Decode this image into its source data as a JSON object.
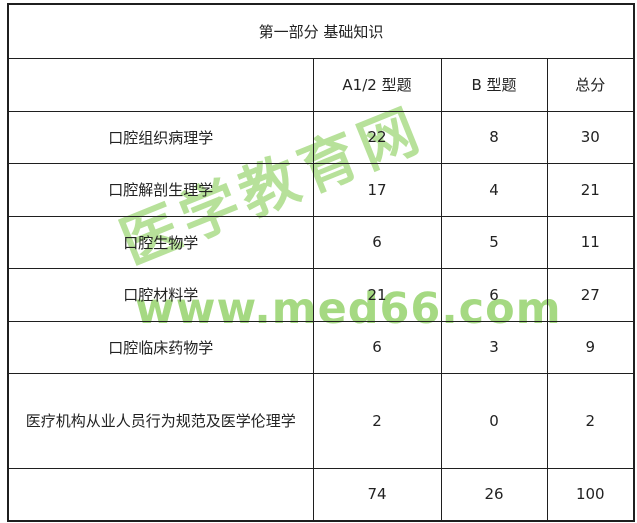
{
  "watermark": {
    "site_name": "医学教育网",
    "site_url": "www.med66.com",
    "diagonal_color": "#b7e19a",
    "url_color": "#a5d982"
  },
  "table": {
    "title": "第一部分 基础知识",
    "columns": [
      "",
      "A1/2 型题",
      "B 型题",
      "总分"
    ],
    "rows": [
      {
        "subject": "口腔组织病理学",
        "a12": "22",
        "b": "8",
        "total": "30"
      },
      {
        "subject": "口腔解剖生理学",
        "a12": "17",
        "b": "4",
        "total": "21"
      },
      {
        "subject": "口腔生物学",
        "a12": "6",
        "b": "5",
        "total": "11"
      },
      {
        "subject": "口腔材料学",
        "a12": "21",
        "b": "6",
        "total": "27"
      },
      {
        "subject": "口腔临床药物学",
        "a12": "6",
        "b": "3",
        "total": "9"
      },
      {
        "subject": "医疗机构从业人员行为规范及医学伦理学",
        "a12": "2",
        "b": "0",
        "total": "2"
      },
      {
        "subject": "",
        "a12": "74",
        "b": "26",
        "total": "100"
      }
    ],
    "border_color": "#1f1f1f",
    "text_color": "#222222"
  }
}
